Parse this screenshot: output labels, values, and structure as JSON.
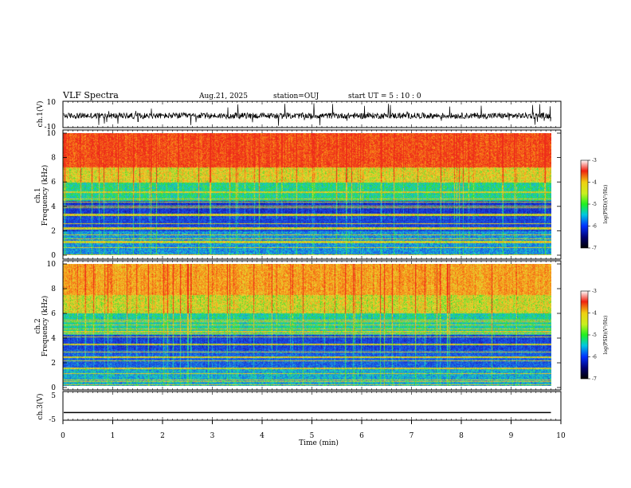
{
  "header": {
    "title": "VLF Spectra",
    "date": "Aug.21, 2025",
    "station": "station=OUJ",
    "start": "start  UT =   5 : 10 : 0"
  },
  "chart_data": [
    {
      "type": "line",
      "panel": "ch1-waveform",
      "ylabel": "ch.1(V)",
      "ylim": [
        -10,
        10
      ],
      "yticks": [
        "10",
        "-10"
      ],
      "x_range_min": [
        0,
        9.8
      ],
      "baseline_approx": -1,
      "trace_color": "#000000"
    },
    {
      "type": "heatmap",
      "panel": "ch1-spectrogram",
      "ylabel_line1": "ch.1",
      "ylabel_line2": "Frequency (kHz)",
      "ylim": [
        0,
        10
      ],
      "yticks": [
        "0",
        "2",
        "4",
        "6",
        "8",
        "10"
      ],
      "x_range_min": [
        0,
        9.8
      ],
      "colorbar": {
        "label": "log(PSD)(V²/Hz)",
        "range": [
          -7,
          -3
        ],
        "ticks": [
          "-3",
          "-4",
          "-5",
          "-6",
          "-7"
        ]
      }
    },
    {
      "type": "heatmap",
      "panel": "ch2-spectrogram",
      "ylabel_line1": "ch.2",
      "ylabel_line2": "Frequency (kHz)",
      "ylim": [
        0,
        10
      ],
      "yticks": [
        "0",
        "2",
        "4",
        "6",
        "8",
        "10"
      ],
      "x_range_min": [
        0,
        9.8
      ],
      "colorbar": {
        "label": "log(PSD)(V²/Hz)",
        "range": [
          -7,
          -3
        ],
        "ticks": [
          "-3",
          "-4",
          "-5",
          "-6",
          "-7"
        ]
      }
    },
    {
      "type": "line",
      "panel": "ch3-waveform",
      "ylabel": "ch.3(V)",
      "ylim": [
        -5,
        5
      ],
      "yticks": [
        "5",
        "0",
        "-5"
      ],
      "x_range_min": [
        0,
        9.8
      ],
      "constant_value": -2,
      "trace_color": "#000000"
    }
  ],
  "xaxis": {
    "label": "Time (min)",
    "range": [
      0,
      10
    ],
    "ticks": [
      "0",
      "1",
      "2",
      "3",
      "4",
      "5",
      "6",
      "7",
      "8",
      "9",
      "10"
    ]
  },
  "colors": {
    "red": "#ee2a1a",
    "orange": "#f88a18",
    "yellow": "#ecd830",
    "green": "#30e030",
    "cyan": "#18c8d0",
    "blue": "#1858e8",
    "navy": "#101070"
  }
}
